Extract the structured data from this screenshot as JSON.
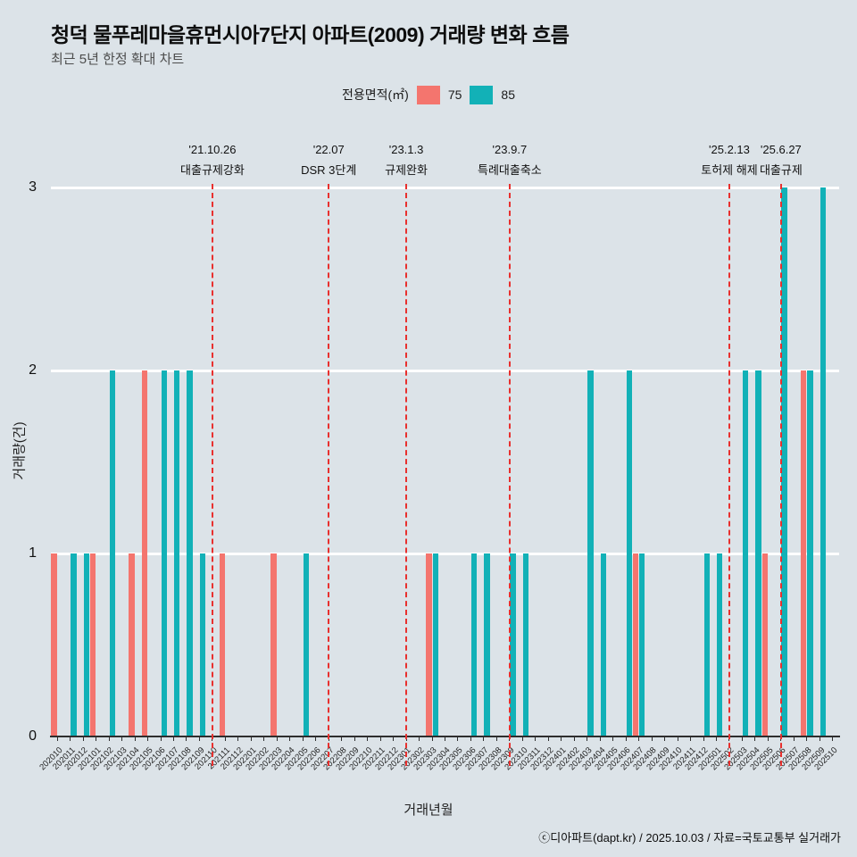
{
  "header": {
    "title": "청덕 물푸레마을휴먼시아7단지 아파트(2009) 거래량 변화 흐름",
    "subtitle": "최근 5년 한정 확대 차트"
  },
  "legend": {
    "title": "전용면적(㎡)",
    "items": [
      {
        "label": "75",
        "color_key": "s75"
      },
      {
        "label": "85",
        "color_key": "s85"
      }
    ]
  },
  "footer": {
    "credit": "ⓒ디아파트(dapt.kr) / 2025.10.03 / 자료=국토교통부 실거래가"
  },
  "colors": {
    "s75": "#f4756e",
    "s85": "#12b1b7",
    "annotation_line": "#e8302e",
    "background": "#dce3e8",
    "gridline": "#ffffff",
    "axis": "#2e2e2e"
  },
  "chart_data": {
    "type": "bar",
    "title": "청덕 물푸레마을휴먼시아7단지 아파트(2009) 거래량 변화 흐름",
    "xlabel": "거래년월",
    "ylabel": "거래량(건)",
    "ylim": [
      0,
      3
    ],
    "yticks": [
      0,
      1,
      2,
      3
    ],
    "grid": true,
    "legend_position": "top",
    "categories": [
      "202010",
      "202011",
      "202012",
      "202101",
      "202102",
      "202103",
      "202104",
      "202105",
      "202106",
      "202107",
      "202108",
      "202109",
      "202110",
      "202111",
      "202112",
      "202201",
      "202202",
      "202203",
      "202204",
      "202205",
      "202206",
      "202207",
      "202208",
      "202209",
      "202210",
      "202211",
      "202212",
      "202301",
      "202302",
      "202303",
      "202304",
      "202305",
      "202306",
      "202307",
      "202308",
      "202309",
      "202310",
      "202311",
      "202312",
      "202401",
      "202402",
      "202403",
      "202404",
      "202405",
      "202406",
      "202407",
      "202408",
      "202409",
      "202410",
      "202411",
      "202412",
      "202501",
      "202502",
      "202503",
      "202504",
      "202505",
      "202506",
      "202507",
      "202508",
      "202509",
      "202510"
    ],
    "series": [
      {
        "name": "75",
        "color_key": "s75",
        "values": [
          1,
          0,
          0,
          1,
          0,
          0,
          1,
          2,
          0,
          0,
          0,
          0,
          0,
          1,
          0,
          0,
          0,
          1,
          0,
          0,
          0,
          0,
          0,
          0,
          0,
          0,
          0,
          0,
          0,
          1,
          0,
          0,
          0,
          0,
          0,
          0,
          0,
          0,
          0,
          0,
          0,
          0,
          0,
          0,
          0,
          1,
          0,
          0,
          0,
          0,
          0,
          0,
          0,
          0,
          0,
          1,
          0,
          0,
          2,
          0,
          0
        ]
      },
      {
        "name": "85",
        "color_key": "s85",
        "values": [
          0,
          1,
          1,
          0,
          2,
          0,
          0,
          0,
          2,
          2,
          2,
          1,
          0,
          0,
          0,
          0,
          0,
          0,
          0,
          1,
          0,
          0,
          0,
          0,
          0,
          0,
          0,
          0,
          0,
          1,
          0,
          0,
          1,
          1,
          0,
          1,
          1,
          0,
          0,
          0,
          0,
          2,
          1,
          0,
          2,
          1,
          0,
          0,
          0,
          0,
          1,
          1,
          0,
          2,
          2,
          0,
          3,
          0,
          2,
          3,
          0
        ]
      }
    ],
    "annotations": [
      {
        "month": "202110",
        "date": "'21.10.26",
        "label": "대출규제강화"
      },
      {
        "month": "202207",
        "date": "'22.07",
        "label": "DSR 3단계"
      },
      {
        "month": "202301",
        "date": "'23.1.3",
        "label": "규제완화"
      },
      {
        "month": "202309",
        "date": "'23.9.7",
        "label": "특례대출축소"
      },
      {
        "month": "202502",
        "date": "'25.2.13",
        "label": "토허제 해제"
      },
      {
        "month": "202506",
        "date": "'25.6.27",
        "label": "대출규제"
      }
    ]
  }
}
